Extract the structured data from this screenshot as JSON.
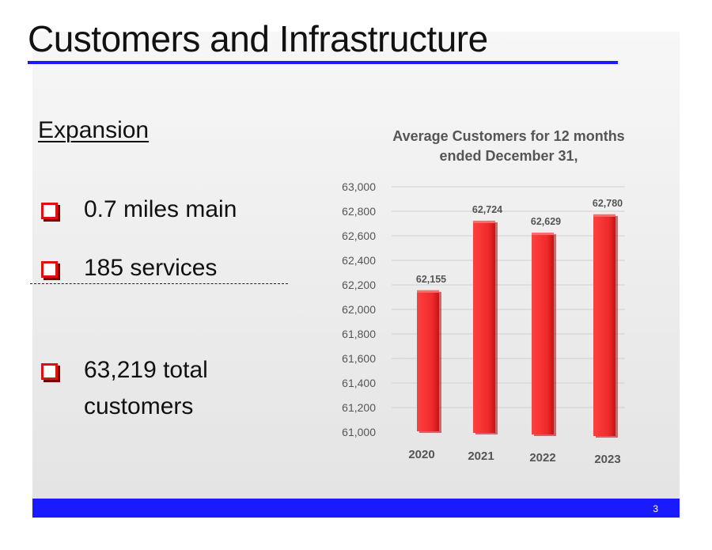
{
  "slide": {
    "title": "Customers and Infrastructure",
    "page_number": "3",
    "accent_color": "#1a1aff",
    "bullet_color": "#dd1111"
  },
  "left_panel": {
    "heading": "Expansion",
    "bullets": [
      {
        "text": "0.7 miles main"
      },
      {
        "text": "185 services"
      },
      {
        "text_line1": "63,219 total",
        "text_line2": "customers"
      }
    ]
  },
  "chart_data": {
    "type": "bar",
    "title_line1": "Average Customers for 12 months",
    "title_line2": "ended December 31,",
    "categories": [
      "2020",
      "2021",
      "2022",
      "2023"
    ],
    "values": [
      62155,
      62724,
      62629,
      62780
    ],
    "value_labels": [
      "62,155",
      "62,724",
      "62,629",
      "62,780"
    ],
    "ylim": [
      61000,
      63000
    ],
    "yticks": [
      61000,
      61200,
      61400,
      61600,
      61800,
      62000,
      62200,
      62400,
      62600,
      62800,
      63000
    ],
    "ytick_labels": [
      "61,000",
      "61,200",
      "61,400",
      "61,600",
      "61,800",
      "62,000",
      "62,200",
      "62,400",
      "62,600",
      "62,800",
      "63,000"
    ],
    "bar_color": "#ee2a2a",
    "grid": true,
    "legend": "none",
    "xlabel": "",
    "ylabel": ""
  }
}
